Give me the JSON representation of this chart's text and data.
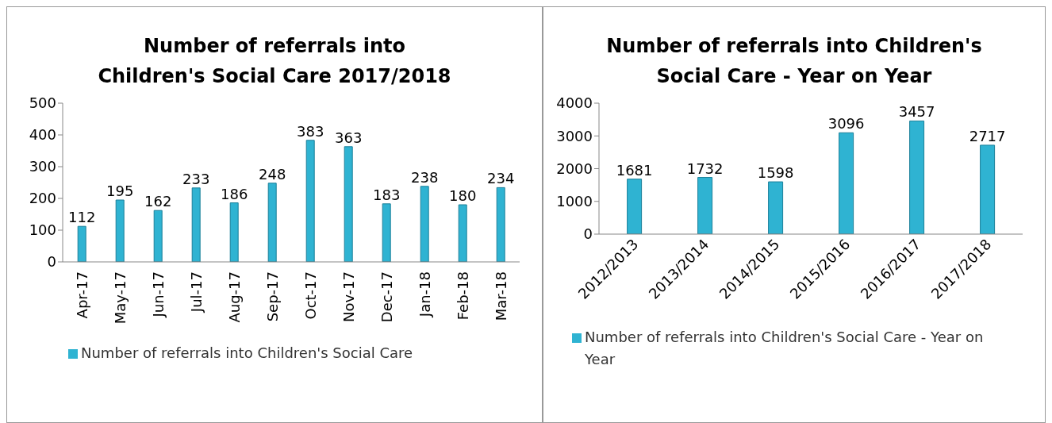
{
  "chart_data": [
    {
      "type": "bar",
      "title": "Number of referrals into Children's Social Care 2017/2018",
      "categories": [
        "Apr-17",
        "May-17",
        "Jun-17",
        "Jul-17",
        "Aug-17",
        "Sep-17",
        "Oct-17",
        "Nov-17",
        "Dec-17",
        "Jan-18",
        "Feb-18",
        "Mar-18"
      ],
      "series": [
        {
          "name": "Number of referrals into Children's Social Care",
          "color": "#2fb3d2",
          "values": [
            112,
            195,
            162,
            233,
            186,
            248,
            383,
            363,
            183,
            238,
            180,
            234
          ]
        }
      ],
      "ylim": [
        0,
        500
      ],
      "yticks": [
        0,
        100,
        200,
        300,
        400,
        500
      ],
      "data_labels": true,
      "legend": "bottom",
      "grid": false
    },
    {
      "type": "bar",
      "title": "Number of referrals into Children's Social Care - Year on Year",
      "categories": [
        "2012/2013",
        "2013/2014",
        "2014/2015",
        "2015/2016",
        "2016/2017",
        "2017/2018"
      ],
      "series": [
        {
          "name": "Number of referrals into Children's Social Care - Year on Year",
          "color": "#2fb3d2",
          "values": [
            1681,
            1732,
            1598,
            3096,
            3457,
            2717
          ]
        }
      ],
      "ylim": [
        0,
        4000
      ],
      "yticks": [
        0,
        1000,
        2000,
        3000,
        4000
      ],
      "data_labels": true,
      "legend": "bottom",
      "grid": false
    }
  ]
}
